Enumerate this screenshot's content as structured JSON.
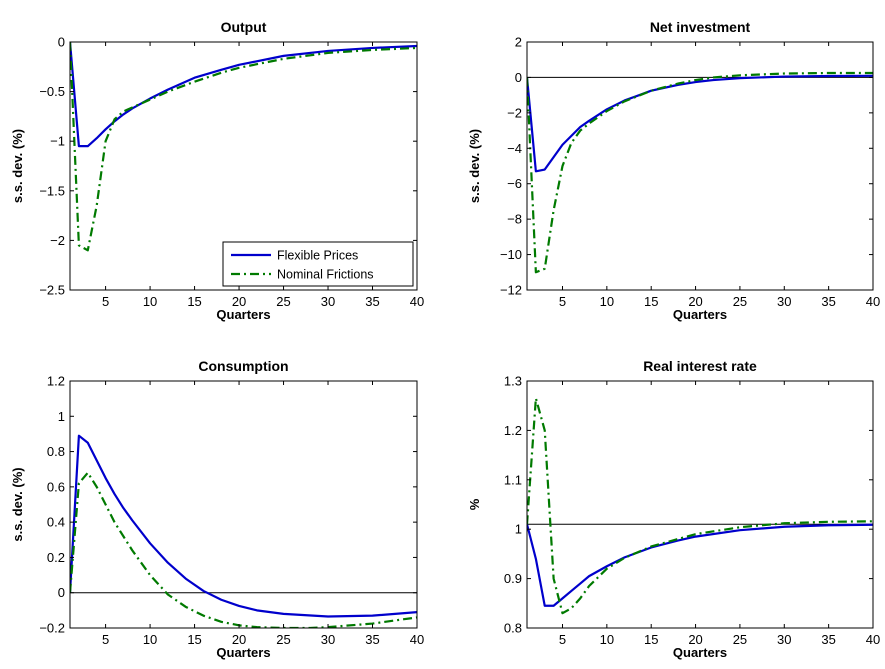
{
  "chart_data": [
    {
      "type": "line",
      "title": "Output",
      "xlabel": "Quarters",
      "ylabel": "s.s. dev. (%)",
      "xlim": [
        1,
        40
      ],
      "ylim": [
        -2.5,
        0
      ],
      "xticks": [
        5,
        10,
        15,
        20,
        25,
        30,
        35,
        40
      ],
      "yticks": [
        0,
        -0.5,
        -1,
        -1.5,
        -2,
        -2.5
      ],
      "yticklabels": [
        "0",
        "−0.5",
        "−1",
        "−1.5",
        "−2",
        "−2.5"
      ],
      "reference_line": null,
      "legend": "bottom-right",
      "series": [
        {
          "name": "Flexible Prices",
          "color": "#0000cc",
          "style": "solid",
          "x": [
            1,
            2,
            3,
            4,
            5,
            6,
            7,
            8,
            10,
            12,
            15,
            18,
            20,
            25,
            30,
            35,
            40
          ],
          "y": [
            0,
            -1.05,
            -1.05,
            -0.97,
            -0.88,
            -0.8,
            -0.73,
            -0.67,
            -0.57,
            -0.48,
            -0.36,
            -0.28,
            -0.23,
            -0.14,
            -0.09,
            -0.06,
            -0.04
          ]
        },
        {
          "name": "Nominal Frictions",
          "color": "#007a00",
          "style": "dashdot",
          "x": [
            1,
            2,
            3,
            4,
            5,
            6,
            7,
            8,
            10,
            12,
            15,
            18,
            20,
            25,
            30,
            35,
            40
          ],
          "y": [
            0,
            -2.05,
            -2.1,
            -1.65,
            -1.0,
            -0.78,
            -0.7,
            -0.66,
            -0.58,
            -0.5,
            -0.4,
            -0.31,
            -0.26,
            -0.17,
            -0.11,
            -0.08,
            -0.06
          ]
        }
      ]
    },
    {
      "type": "line",
      "title": "Net investment",
      "xlabel": "Quarters",
      "ylabel": "s.s. dev. (%)",
      "xlim": [
        1,
        40
      ],
      "ylim": [
        -12,
        2
      ],
      "xticks": [
        5,
        10,
        15,
        20,
        25,
        30,
        35,
        40
      ],
      "yticks": [
        2,
        0,
        -2,
        -4,
        -6,
        -8,
        -10,
        -12
      ],
      "yticklabels": [
        "2",
        "0",
        "−2",
        "−4",
        "−6",
        "−8",
        "−10",
        "−12"
      ],
      "reference_line": 0,
      "legend": null,
      "series": [
        {
          "name": "Flexible Prices",
          "color": "#0000cc",
          "style": "solid",
          "x": [
            1,
            2,
            3,
            4,
            5,
            6,
            7,
            8,
            10,
            12,
            15,
            18,
            20,
            22,
            25,
            30,
            35,
            40
          ],
          "y": [
            0,
            -5.3,
            -5.2,
            -4.5,
            -3.8,
            -3.3,
            -2.8,
            -2.45,
            -1.8,
            -1.3,
            -0.75,
            -0.42,
            -0.26,
            -0.15,
            -0.04,
            0.05,
            0.08,
            0.09
          ]
        },
        {
          "name": "Nominal Frictions",
          "color": "#007a00",
          "style": "dashdot",
          "x": [
            1,
            2,
            3,
            4,
            5,
            6,
            7,
            8,
            10,
            12,
            15,
            18,
            20,
            22,
            25,
            30,
            35,
            40
          ],
          "y": [
            0,
            -11,
            -10.8,
            -7.5,
            -5.0,
            -3.7,
            -3.0,
            -2.6,
            -1.9,
            -1.35,
            -0.75,
            -0.35,
            -0.15,
            0.0,
            0.12,
            0.22,
            0.25,
            0.25
          ]
        }
      ]
    },
    {
      "type": "line",
      "title": "Consumption",
      "xlabel": "Quarters",
      "ylabel": "s.s. dev. (%)",
      "xlim": [
        1,
        40
      ],
      "ylim": [
        -0.2,
        1.2
      ],
      "xticks": [
        5,
        10,
        15,
        20,
        25,
        30,
        35,
        40
      ],
      "yticks": [
        1.2,
        1,
        0.8,
        0.6,
        0.4,
        0.2,
        0,
        -0.2
      ],
      "yticklabels": [
        "1.2",
        "1",
        "0.8",
        "0.6",
        "0.4",
        "0.2",
        "0",
        "−0.2"
      ],
      "reference_line": 0,
      "legend": null,
      "series": [
        {
          "name": "Flexible Prices",
          "color": "#0000cc",
          "style": "solid",
          "x": [
            1,
            2,
            3,
            4,
            5,
            6,
            7,
            8,
            10,
            12,
            14,
            16,
            18,
            20,
            22,
            25,
            30,
            35,
            40
          ],
          "y": [
            0,
            0.89,
            0.85,
            0.75,
            0.65,
            0.56,
            0.48,
            0.41,
            0.28,
            0.17,
            0.08,
            0.01,
            -0.04,
            -0.075,
            -0.1,
            -0.12,
            -0.135,
            -0.13,
            -0.11
          ]
        },
        {
          "name": "Nominal Frictions",
          "color": "#007a00",
          "style": "dashdot",
          "x": [
            1,
            2,
            3,
            4,
            5,
            6,
            7,
            8,
            10,
            12,
            14,
            16,
            18,
            20,
            22,
            25,
            28,
            30,
            35,
            40
          ],
          "y": [
            0,
            0.62,
            0.68,
            0.6,
            0.5,
            0.4,
            0.32,
            0.24,
            0.1,
            -0.01,
            -0.08,
            -0.13,
            -0.165,
            -0.185,
            -0.195,
            -0.2,
            -0.2,
            -0.195,
            -0.175,
            -0.14
          ]
        }
      ]
    },
    {
      "type": "line",
      "title": "Real interest rate",
      "xlabel": "Quarters",
      "ylabel": "%",
      "xlim": [
        1,
        40
      ],
      "ylim": [
        0.8,
        1.3
      ],
      "xticks": [
        5,
        10,
        15,
        20,
        25,
        30,
        35,
        40
      ],
      "yticks": [
        1.3,
        1.2,
        1.1,
        1,
        0.9,
        0.8
      ],
      "yticklabels": [
        "1.3",
        "1.2",
        "1.1",
        "1",
        "0.9",
        "0.8"
      ],
      "reference_line": 1.01,
      "legend": null,
      "series": [
        {
          "name": "Flexible Prices",
          "color": "#0000cc",
          "style": "solid",
          "x": [
            1,
            2,
            3,
            4,
            5,
            6,
            7,
            8,
            10,
            12,
            15,
            18,
            20,
            25,
            30,
            35,
            40
          ],
          "y": [
            1.01,
            0.94,
            0.845,
            0.845,
            0.86,
            0.875,
            0.89,
            0.905,
            0.925,
            0.943,
            0.963,
            0.977,
            0.985,
            0.998,
            1.005,
            1.008,
            1.009
          ]
        },
        {
          "name": "Nominal Frictions",
          "color": "#007a00",
          "style": "dashdot",
          "x": [
            1,
            2,
            3,
            4,
            5,
            6,
            7,
            8,
            10,
            12,
            15,
            18,
            20,
            25,
            30,
            35,
            40
          ],
          "y": [
            1.01,
            1.265,
            1.2,
            0.9,
            0.83,
            0.84,
            0.86,
            0.885,
            0.92,
            0.942,
            0.965,
            0.98,
            0.99,
            1.004,
            1.012,
            1.015,
            1.016
          ]
        }
      ]
    }
  ]
}
